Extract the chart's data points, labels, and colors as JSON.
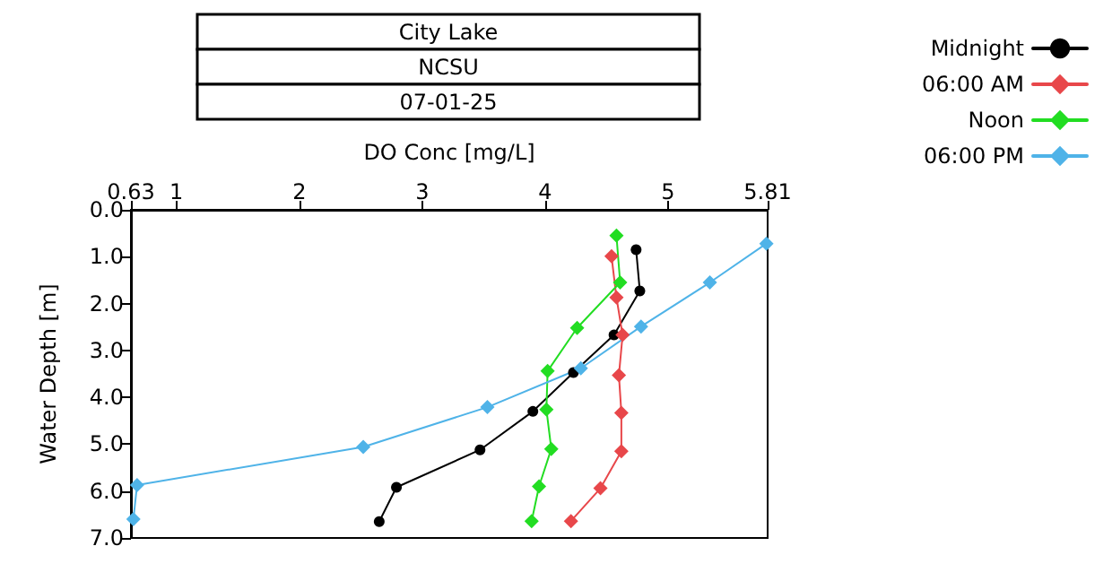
{
  "chart_data": {
    "type": "line",
    "title": "City Lake",
    "subtitle": "NCSU",
    "annotations": [
      "07-01-25"
    ],
    "xlabel": "DO Conc [mg/L]",
    "ylabel": "Water Depth [m]",
    "xlim": [
      0.63,
      5.81
    ],
    "xticks": [
      0.63,
      1,
      2,
      3,
      4,
      5,
      5.81
    ],
    "ylim": [
      7,
      0
    ],
    "yticks": [
      {
        "value": 0,
        "label": "0.0"
      },
      {
        "value": 1,
        "label": "1.0"
      },
      {
        "value": 2,
        "label": "2.0"
      },
      {
        "value": 3,
        "label": "3.0"
      },
      {
        "value": 4,
        "label": "4.0"
      },
      {
        "value": 5,
        "label": "5.0"
      },
      {
        "value": 6,
        "label": "6.0"
      },
      {
        "value": 7,
        "label": "7.0"
      }
    ],
    "grid": false,
    "legend": "top right",
    "line_style": "solid",
    "series": [
      {
        "name": "Midnight",
        "color": "#000000",
        "marker": "circle",
        "x": [
          4.74,
          4.77,
          4.56,
          4.23,
          3.9,
          3.47,
          2.79,
          2.65
        ],
        "values": [
          0.85,
          1.73,
          2.67,
          3.47,
          4.3,
          5.12,
          5.92,
          6.65
        ]
      },
      {
        "name": "06:00 AM",
        "color": "#e8474a",
        "marker": "diamond",
        "x": [
          4.54,
          4.58,
          4.63,
          4.6,
          4.62,
          4.62,
          4.45,
          4.21
        ],
        "values": [
          0.99,
          1.87,
          2.67,
          3.53,
          4.33,
          5.15,
          5.94,
          6.64
        ]
      },
      {
        "name": "Noon",
        "color": "#22dd22",
        "marker": "diamond",
        "x": [
          4.58,
          4.61,
          4.26,
          4.02,
          4.01,
          4.05,
          3.95,
          3.89
        ],
        "values": [
          0.55,
          1.55,
          2.52,
          3.44,
          4.26,
          5.1,
          5.9,
          6.64
        ]
      },
      {
        "name": "06:00 PM",
        "color": "#4fb3e8",
        "marker": "diamond",
        "x": [
          5.8,
          5.34,
          4.78,
          4.29,
          3.53,
          2.52,
          0.68,
          0.65
        ],
        "values": [
          0.72,
          1.55,
          2.49,
          3.38,
          4.21,
          5.06,
          5.87,
          6.6
        ]
      }
    ]
  }
}
